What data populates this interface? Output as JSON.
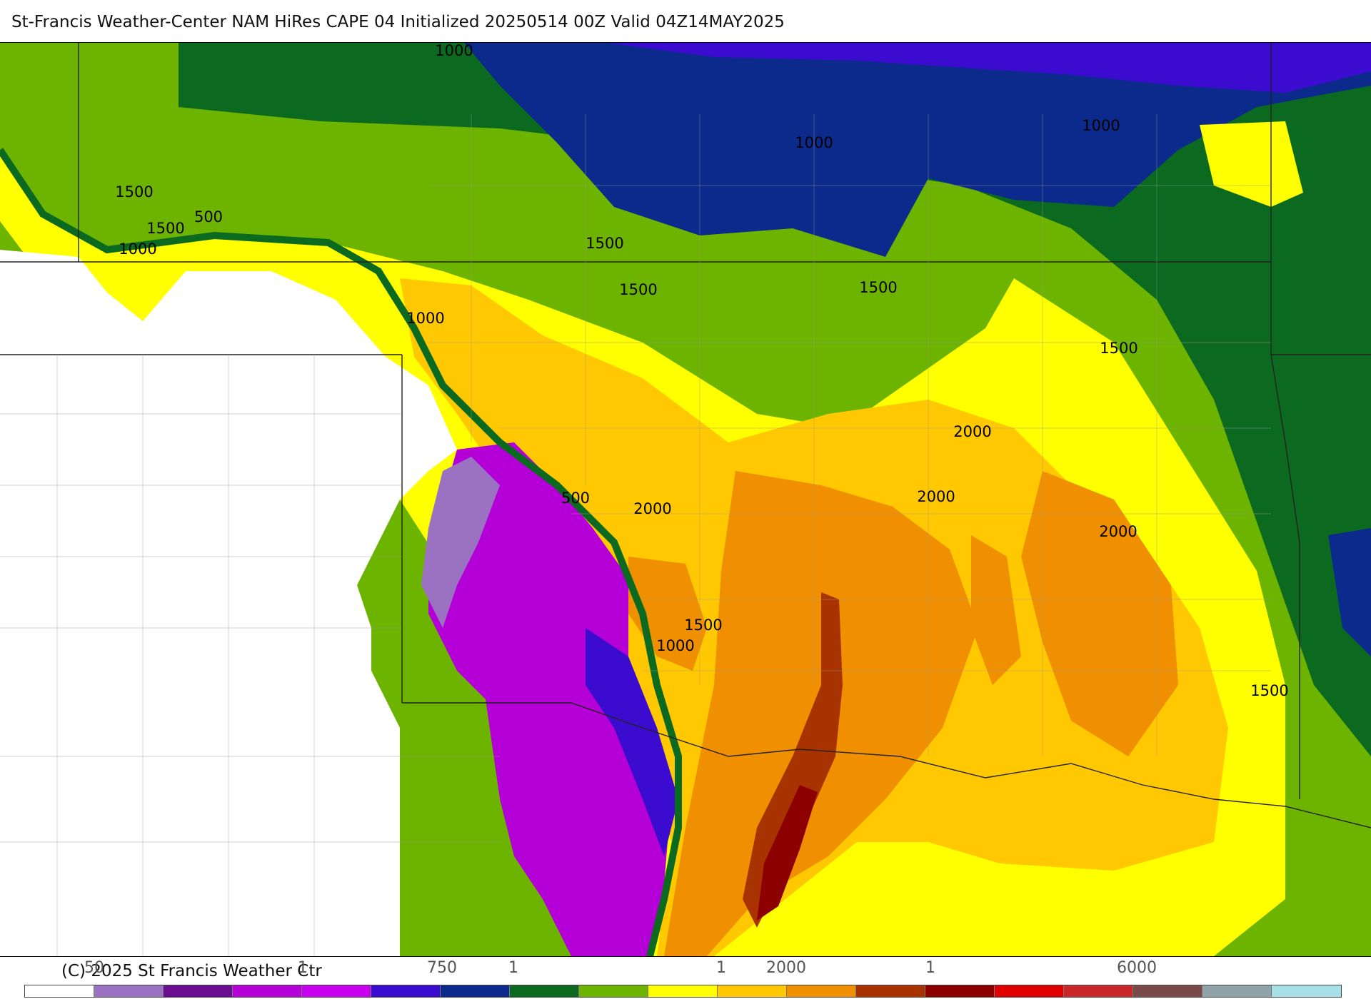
{
  "title": "St-Francis Weather-Center NAM HiRes CAPE  04 Initialized 20250514 00Z Valid 04Z14MAY2025",
  "copyright": "(C) 2025 St Francis Weather Ctr",
  "contour_labels": [
    {
      "text": "1000"
    },
    {
      "text": "1000"
    },
    {
      "text": "1000"
    },
    {
      "text": "1500"
    },
    {
      "text": "1500"
    },
    {
      "text": "500"
    },
    {
      "text": "1000"
    },
    {
      "text": "1500"
    },
    {
      "text": "1500"
    },
    {
      "text": "1500"
    },
    {
      "text": "1000"
    },
    {
      "text": "1500"
    },
    {
      "text": "2000"
    },
    {
      "text": "2000"
    },
    {
      "text": "2000"
    },
    {
      "text": "2000"
    },
    {
      "text": "500"
    },
    {
      "text": "1500"
    },
    {
      "text": "1000"
    },
    {
      "text": "1500"
    }
  ],
  "colorbar": {
    "colors": [
      "#ffffff",
      "#9b72c2",
      "#6a0d91",
      "#b400d6",
      "#c800f0",
      "#3b0ccf",
      "#0c2a8c",
      "#0b6a1f",
      "#6cb400",
      "#ffff00",
      "#ffc800",
      "#f09000",
      "#a83200",
      "#8c0000",
      "#e00000",
      "#c82828",
      "#7a4a48",
      "#8fa3a8",
      "#a8e0e8"
    ],
    "ticks": [
      {
        "text": "50"
      },
      {
        "text": "1"
      },
      {
        "text": "750"
      },
      {
        "text": "1"
      },
      {
        "text": "1"
      },
      {
        "text": "2000"
      },
      {
        "text": "1"
      },
      {
        "text": "6000"
      }
    ]
  }
}
